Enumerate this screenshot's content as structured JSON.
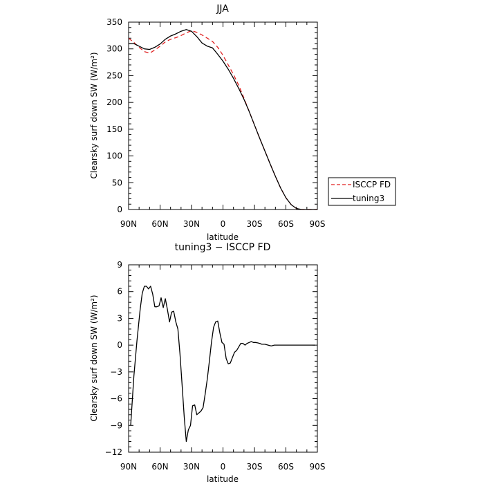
{
  "chart_data": [
    {
      "type": "line",
      "title": "JJA",
      "xlabel": "latitude",
      "ylabel": "Clearsky surf down SW (W/m²)",
      "xlim": [
        90,
        -90
      ],
      "ylim": [
        0,
        350
      ],
      "x_tick_values": [
        90,
        60,
        30,
        0,
        -30,
        -60,
        -90
      ],
      "x_tick_labels": [
        "90N",
        "60N",
        "30N",
        "0",
        "30S",
        "60S",
        "90S"
      ],
      "y_tick_values": [
        0,
        50,
        100,
        150,
        200,
        250,
        300,
        350
      ],
      "y_tick_labels": [
        "0",
        "50",
        "100",
        "150",
        "200",
        "250",
        "300",
        "350"
      ],
      "legend": {
        "placement": "outside-right"
      },
      "x": [
        90,
        85,
        80,
        75,
        70,
        65,
        60,
        55,
        50,
        45,
        40,
        35,
        30,
        25,
        20,
        15,
        10,
        5,
        0,
        -5,
        -10,
        -15,
        -20,
        -25,
        -30,
        -35,
        -40,
        -45,
        -50,
        -55,
        -60,
        -65,
        -70,
        -75,
        -80,
        -85,
        -90
      ],
      "series": [
        {
          "name": "ISCCP FD",
          "color": "#e02020",
          "dash": "dashed",
          "values": [
            320,
            312,
            303,
            295,
            292,
            298,
            305,
            313,
            318,
            321,
            325,
            330,
            334,
            331,
            326,
            320,
            314,
            303,
            288,
            270,
            252,
            232,
            208,
            183,
            158,
            133,
            109,
            85,
            62,
            40,
            22,
            9,
            2,
            0,
            0,
            0,
            0
          ]
        },
        {
          "name": "tuning3",
          "color": "#000000",
          "dash": "solid",
          "values": [
            310,
            310,
            305,
            300,
            299,
            303,
            309,
            318,
            324,
            328,
            333,
            336,
            333,
            323,
            311,
            305,
            302,
            290,
            277,
            262,
            245,
            226,
            206,
            183,
            158,
            133,
            109,
            85,
            62,
            40,
            22,
            9,
            2,
            0,
            0,
            0,
            0
          ]
        }
      ]
    },
    {
      "type": "line",
      "title": "tuning3 − ISCCP FD",
      "xlabel": "latitude",
      "ylabel": "Clearsky surf down SW (W/m²)",
      "xlim": [
        90,
        -90
      ],
      "ylim": [
        -12,
        9
      ],
      "x_tick_values": [
        90,
        60,
        30,
        0,
        -30,
        -60,
        -90
      ],
      "x_tick_labels": [
        "90N",
        "60N",
        "30N",
        "0",
        "30S",
        "60S",
        "90S"
      ],
      "y_tick_values": [
        9,
        6,
        3,
        0,
        -3,
        -6,
        -9,
        -12
      ],
      "y_tick_labels": [
        "9",
        "6",
        "3",
        "0",
        "−3",
        "−6",
        "−9",
        "−12"
      ],
      "x": [
        88,
        85,
        82,
        79,
        77,
        75,
        73,
        71,
        69,
        67,
        65,
        63,
        61,
        59,
        57,
        55,
        53,
        51,
        49,
        47,
        45,
        43,
        41,
        39,
        37,
        35,
        33,
        31,
        29,
        27,
        25,
        23,
        21,
        19,
        17,
        15,
        13,
        11,
        9,
        7,
        5,
        3,
        1,
        -1,
        -3,
        -5,
        -7,
        -9,
        -11,
        -13,
        -15,
        -17,
        -19,
        -21,
        -23,
        -25,
        -27,
        -29,
        -31,
        -33,
        -35,
        -37,
        -40,
        -43,
        -46,
        -49,
        -52,
        -55,
        -58,
        -61,
        -64,
        -67,
        -70,
        -73,
        -76,
        -79,
        -82,
        -85,
        -88
      ],
      "series": [
        {
          "name": "tuning3",
          "color": "#000000",
          "dash": "solid",
          "values": [
            -9.0,
            -3.5,
            0.5,
            4.0,
            5.8,
            6.6,
            6.6,
            6.3,
            6.6,
            5.7,
            4.3,
            4.3,
            4.4,
            5.3,
            4.2,
            5.2,
            4.0,
            2.6,
            3.7,
            3.8,
            2.6,
            1.8,
            -1.0,
            -4.5,
            -8.0,
            -10.8,
            -9.5,
            -9.0,
            -6.8,
            -6.7,
            -7.8,
            -7.6,
            -7.4,
            -7.0,
            -5.5,
            -3.8,
            -1.8,
            0.3,
            2.0,
            2.6,
            2.7,
            1.4,
            0.3,
            0.1,
            -1.5,
            -2.1,
            -2.0,
            -1.4,
            -0.8,
            -0.6,
            -0.2,
            0.2,
            0.2,
            0.0,
            0.2,
            0.3,
            0.4,
            0.3,
            0.3,
            0.25,
            0.2,
            0.1,
            0.1,
            0.0,
            -0.1,
            0.0,
            0.0,
            0.0,
            0.0,
            0.0,
            0.0,
            0.0,
            0.0,
            0.0,
            0.0,
            0.0,
            0.0,
            0.0,
            0.0
          ]
        }
      ]
    }
  ]
}
